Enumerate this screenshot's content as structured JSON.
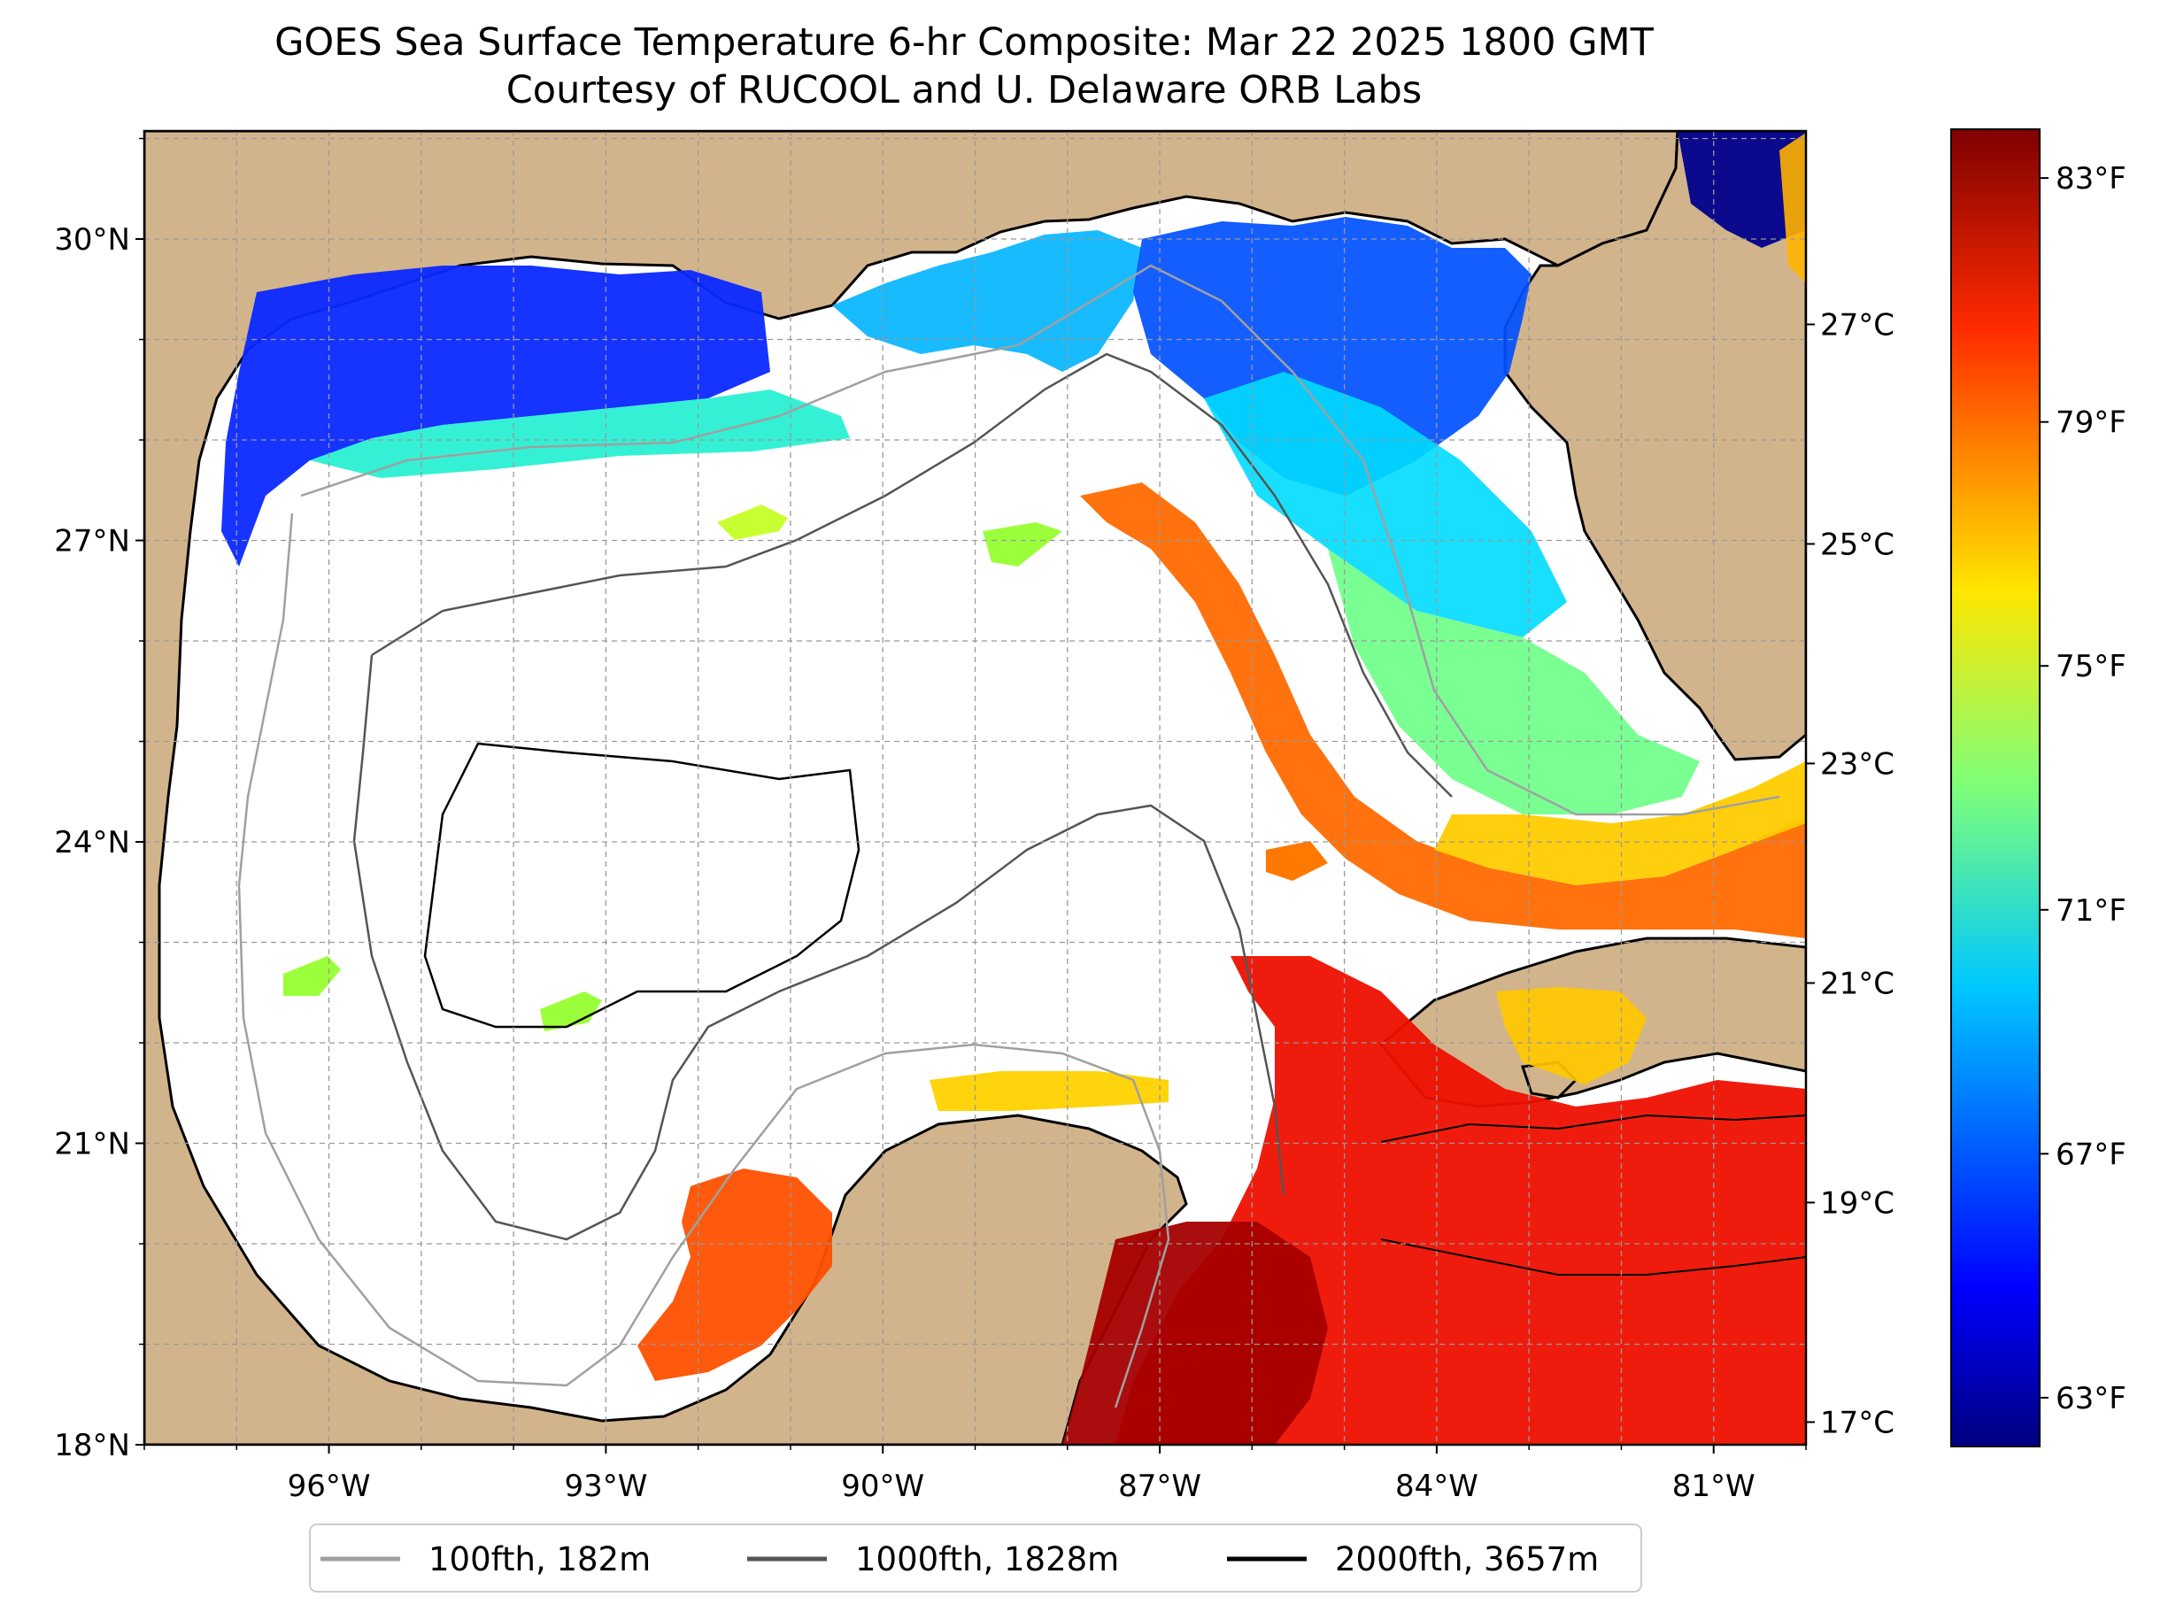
{
  "title": "GOES Sea Surface Temperature 6-hr Composite: Mar 22 2025 1800 GMT",
  "subtitle": "Courtesy of RUCOOL and U. Delaware ORB Labs",
  "map": {
    "lon_range": [
      -98,
      -80
    ],
    "lat_range": [
      18,
      31
    ],
    "lat_ticks": [
      {
        "value": 18,
        "label": "18°N"
      },
      {
        "value": 21,
        "label": "21°N"
      },
      {
        "value": 24,
        "label": "24°N"
      },
      {
        "value": 27,
        "label": "27°N"
      },
      {
        "value": 30,
        "label": "30°N"
      }
    ],
    "lon_ticks": [
      {
        "value": -96,
        "label": "96°W"
      },
      {
        "value": -93,
        "label": "93°W"
      },
      {
        "value": -90,
        "label": "90°W"
      },
      {
        "value": -87,
        "label": "87°W"
      },
      {
        "value": -84,
        "label": "84°W"
      },
      {
        "value": -81,
        "label": "81°W"
      }
    ],
    "gridlines": true,
    "land_color": "#d2b48c",
    "ocean_no_data_color": "#ffffff"
  },
  "colorbar": {
    "colormap": "jet",
    "fahrenheit_ticks": [
      {
        "value": 63,
        "label": "63°F"
      },
      {
        "value": 67,
        "label": "67°F"
      },
      {
        "value": 71,
        "label": "71°F"
      },
      {
        "value": 75,
        "label": "75°F"
      },
      {
        "value": 79,
        "label": "79°F"
      },
      {
        "value": 83,
        "label": "83°F"
      }
    ],
    "celsius_ticks": [
      {
        "value": 17,
        "label": "17°C"
      },
      {
        "value": 19,
        "label": "19°C"
      },
      {
        "value": 21,
        "label": "21°C"
      },
      {
        "value": 23,
        "label": "23°C"
      },
      {
        "value": 25,
        "label": "25°C"
      },
      {
        "value": 27,
        "label": "27°C"
      }
    ],
    "range_f": [
      62.2,
      83.8
    ]
  },
  "legend": {
    "placement": "bottom-center",
    "entries": [
      {
        "label": "100fth, 182m",
        "color": "#a0a0a0"
      },
      {
        "label": "1000fth, 1828m",
        "color": "#555555"
      },
      {
        "label": "2000fth, 3657m",
        "color": "#000000"
      }
    ]
  }
}
